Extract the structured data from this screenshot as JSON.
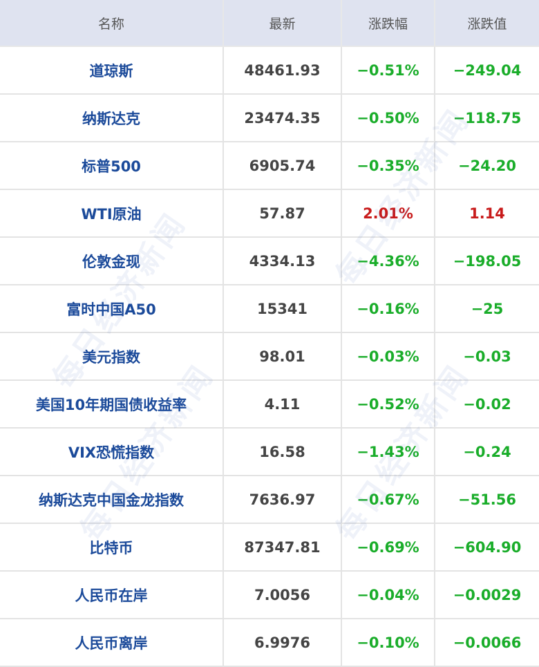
{
  "headers": [
    "名称",
    "最新",
    "涨跌幅",
    "涨跌值"
  ],
  "rows": [
    {
      "name": "道琼斯",
      "last": "48461.93",
      "pct": "−0.51%",
      "chg": "−249.04",
      "dir": "down"
    },
    {
      "name": "纳斯达克",
      "last": "23474.35",
      "pct": "−0.50%",
      "chg": "−118.75",
      "dir": "down"
    },
    {
      "name": "标普500",
      "last": "6905.74",
      "pct": "−0.35%",
      "chg": "−24.20",
      "dir": "down"
    },
    {
      "name": "WTI原油",
      "last": "57.87",
      "pct": "2.01%",
      "chg": "1.14",
      "dir": "up"
    },
    {
      "name": "伦敦金现",
      "last": "4334.13",
      "pct": "−4.36%",
      "chg": "−198.05",
      "dir": "down"
    },
    {
      "name": "富时中国A50",
      "last": "15341",
      "pct": "−0.16%",
      "chg": "−25",
      "dir": "down"
    },
    {
      "name": "美元指数",
      "last": "98.01",
      "pct": "−0.03%",
      "chg": "−0.03",
      "dir": "down"
    },
    {
      "name": "美国10年期国债收益率",
      "last": "4.11",
      "pct": "−0.52%",
      "chg": "−0.02",
      "dir": "down"
    },
    {
      "name": "VIX恐慌指数",
      "last": "16.58",
      "pct": "−1.43%",
      "chg": "−0.24",
      "dir": "down"
    },
    {
      "name": "纳斯达克中国金龙指数",
      "last": "7636.97",
      "pct": "−0.67%",
      "chg": "−51.56",
      "dir": "down"
    },
    {
      "name": "比特币",
      "last": "87347.81",
      "pct": "−0.69%",
      "chg": "−604.90",
      "dir": "down"
    },
    {
      "name": "人民币在岸",
      "last": "7.0056",
      "pct": "−0.04%",
      "chg": "−0.0029",
      "dir": "down"
    },
    {
      "name": "人民币离岸",
      "last": "6.9976",
      "pct": "−0.10%",
      "chg": "−0.0066",
      "dir": "down"
    }
  ],
  "colors": {
    "up": "#c81b1b",
    "down": "#1aad2a",
    "name": "#1b4a9a",
    "header_bg": "#dfe3f0"
  },
  "watermark": "每日经济新闻"
}
